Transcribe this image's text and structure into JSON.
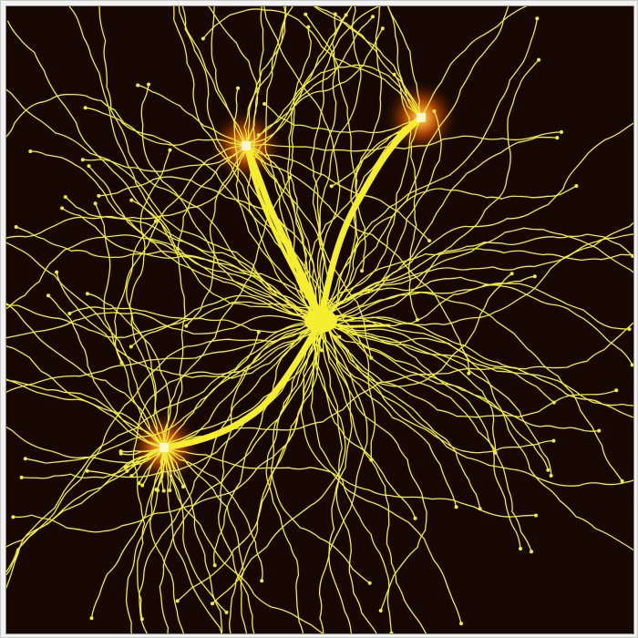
{
  "image": {
    "kind": "neuron-arbor-simulation",
    "description_colors": {
      "background": "#160800",
      "glow_inner": "#ff9a2a",
      "glow_outer": "#5a1f00",
      "branch": "#f2ec3a",
      "soma": "#f4ee2e",
      "hotspot": "#fff6d0"
    },
    "hotspots": [
      {
        "name": "target-node-upper-left",
        "icon": "glow-square"
      },
      {
        "name": "target-node-upper-right",
        "icon": "glow-square"
      },
      {
        "name": "target-node-lower-left",
        "icon": "glow-square"
      }
    ],
    "soma": {
      "name": "cell-body",
      "icon": "filled-ellipse"
    }
  }
}
